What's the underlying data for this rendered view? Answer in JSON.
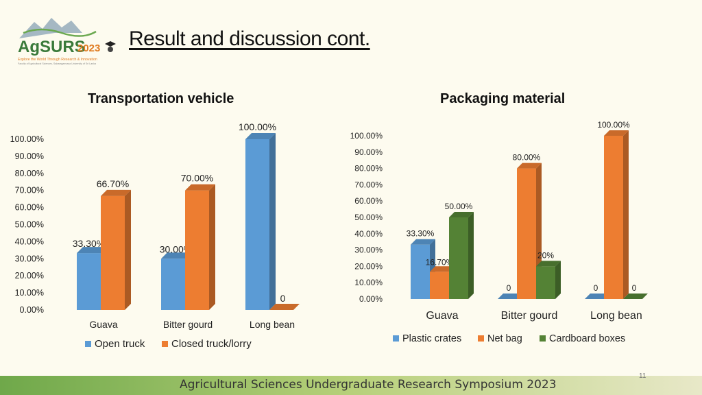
{
  "header": {
    "title": "Result and discussion cont.",
    "logo_text": "AgSURS",
    "logo_year": "2023",
    "logo_tagline": "Explore the World Through Research & Innovation",
    "logo_subtagline": "Faculty of Agricultural Sciences, Sabaragamuwa University of Sri Lanka"
  },
  "footer": {
    "text": "Agricultural Sciences Undergraduate Research Symposium 2023",
    "page_number": "11"
  },
  "colors": {
    "blue": "#5b9bd5",
    "orange": "#ed7d31",
    "green": "#548235"
  },
  "chart_data": [
    {
      "type": "bar",
      "title": "Transportation vehicle",
      "categories": [
        "Guava",
        "Bitter gourd",
        "Long bean"
      ],
      "series": [
        {
          "name": "Open truck",
          "values": [
            33.3,
            30.0,
            100.0
          ],
          "labels": [
            "33.30%",
            "30.00%",
            "100.00%"
          ]
        },
        {
          "name": "Closed truck/lorry",
          "values": [
            66.7,
            70.0,
            0
          ],
          "labels": [
            "66.70%",
            "70.00%",
            "0"
          ]
        }
      ],
      "ylim": [
        0,
        100
      ],
      "yticks": [
        "0.00%",
        "10.00%",
        "20.00%",
        "30.00%",
        "40.00%",
        "50.00%",
        "60.00%",
        "70.00%",
        "80.00%",
        "90.00%",
        "100.00%"
      ],
      "legend": "bottom",
      "grid": false
    },
    {
      "type": "bar",
      "title": "Packaging material",
      "categories": [
        "Guava",
        "Bitter gourd",
        "Long bean"
      ],
      "series": [
        {
          "name": "Plastic crates",
          "values": [
            33.3,
            0,
            0
          ],
          "labels": [
            "33.30%",
            "0",
            "0"
          ]
        },
        {
          "name": "Net bag",
          "values": [
            16.7,
            80.0,
            100.0
          ],
          "labels": [
            "16.70%",
            "80.00%",
            "100.00%"
          ]
        },
        {
          "name": "Cardboard boxes",
          "values": [
            50.0,
            20.0,
            0
          ],
          "labels": [
            "50.00%",
            "20%",
            "0"
          ]
        }
      ],
      "ylim": [
        0,
        100
      ],
      "yticks": [
        "0.00%",
        "10.00%",
        "20.00%",
        "30.00%",
        "40.00%",
        "50.00%",
        "60.00%",
        "70.00%",
        "80.00%",
        "90.00%",
        "100.00%"
      ],
      "legend": "bottom",
      "grid": false
    }
  ]
}
